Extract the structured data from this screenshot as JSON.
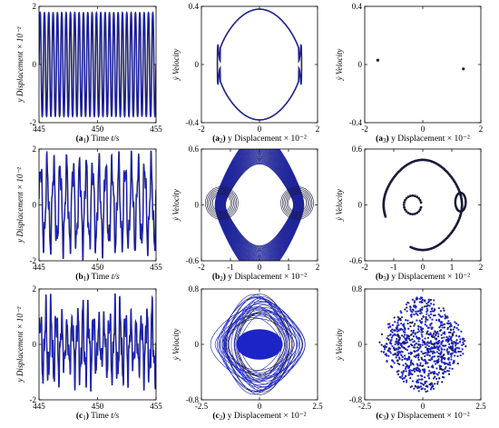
{
  "figure": {
    "colors": {
      "trace": "#1c24c8",
      "edge": "#1a1a3a",
      "axis": "#000000"
    }
  },
  "chart_data": [
    {
      "id": "a1",
      "type": "line",
      "title": "",
      "caption": {
        "letter": "a",
        "sub": "1",
        "text": " Time ",
        "var": "t/s"
      },
      "ylabel": "y Displacement × 10⁻²",
      "xlim": [
        445,
        455
      ],
      "ylim": [
        -2,
        2
      ],
      "xticks": [
        "445",
        "450",
        "455"
      ],
      "yticks": [
        "-2",
        "0",
        "2"
      ],
      "series": [
        {
          "kind": "periodic",
          "x_start": 445,
          "x_end": 455,
          "cycles": 27,
          "amplitude": 1.9
        }
      ]
    },
    {
      "id": "a2",
      "type": "line",
      "title": "",
      "caption": {
        "letter": "a",
        "sub": "2",
        "text": " y Displacement × 10⁻²",
        "var": ""
      },
      "ylabel": "ẏ Velocity",
      "xlim": [
        -2,
        2
      ],
      "ylim": [
        -0.4,
        0.4
      ],
      "xticks": [
        "-2",
        "0",
        "2"
      ],
      "yticks": [
        "-0.4",
        "0",
        "0.4"
      ],
      "series": [
        {
          "kind": "orbit",
          "x_amp": 1.45,
          "y_amp": 0.34,
          "notch": 0.03
        }
      ]
    },
    {
      "id": "a3",
      "type": "scatter",
      "title": "",
      "caption": {
        "letter": "a",
        "sub": "3",
        "text": " y Displacement × 10⁻²",
        "var": ""
      },
      "ylabel": "ẏ Velocity",
      "xlim": [
        -2,
        2
      ],
      "ylim": [
        -0.4,
        0.4
      ],
      "xticks": [
        "-2",
        "0",
        "2"
      ],
      "yticks": [
        "-0.4",
        "0",
        "0.4"
      ],
      "series": [
        {
          "kind": "points",
          "points": [
            [
              -1.55,
              0.03
            ],
            [
              1.4,
              -0.03
            ]
          ]
        }
      ]
    },
    {
      "id": "b1",
      "type": "line",
      "title": "",
      "caption": {
        "letter": "b",
        "sub": "1",
        "text": " Time ",
        "var": "t/s"
      },
      "ylabel": "y Displacement × 10⁻²",
      "xlim": [
        445,
        455
      ],
      "ylim": [
        -2,
        2
      ],
      "xticks": [
        "445",
        "450",
        "455"
      ],
      "yticks": [
        "-2",
        "0",
        "2"
      ],
      "series": [
        {
          "kind": "quasi",
          "x_start": 445,
          "x_end": 455,
          "cycles": 18,
          "amplitude": 1.75
        }
      ]
    },
    {
      "id": "b2",
      "type": "line",
      "title": "",
      "caption": {
        "letter": "b",
        "sub": "2",
        "text": " y Displacement × 10⁻²",
        "var": ""
      },
      "ylabel": "ẏ Velocity",
      "xlim": [
        -2,
        2
      ],
      "ylim": [
        -0.6,
        0.6
      ],
      "xticks": [
        "-2",
        "-1",
        "0",
        "1",
        "2"
      ],
      "yticks": [
        "-0.6",
        "0",
        "0.6"
      ],
      "series": [
        {
          "kind": "torus",
          "x_amp": 1.35,
          "y_amp": 0.44,
          "width": 0.33
        }
      ]
    },
    {
      "id": "b3",
      "type": "scatter",
      "title": "",
      "caption": {
        "letter": "b",
        "sub": "3",
        "text": " y Displacement × 10⁻²",
        "var": ""
      },
      "ylabel": "ẏ Velocity",
      "xlim": [
        -2,
        2
      ],
      "ylim": [
        -0.6,
        0.6
      ],
      "xticks": [
        "-2",
        "-1",
        "0",
        "1",
        "2"
      ],
      "yticks": [
        "-0.6",
        "0",
        "0.6"
      ],
      "series": [
        {
          "kind": "poincare_curve",
          "x_amp": 1.35,
          "y_amp": 0.44
        }
      ]
    },
    {
      "id": "c1",
      "type": "line",
      "title": "",
      "caption": {
        "letter": "c",
        "sub": "1",
        "text": " Time ",
        "var": "t/s"
      },
      "ylabel": "y Displacement × 10⁻²",
      "xlim": [
        445,
        455
      ],
      "ylim": [
        -2,
        2
      ],
      "xticks": [
        "445",
        "450",
        "455"
      ],
      "yticks": [
        "-2",
        "0",
        "2"
      ],
      "series": [
        {
          "kind": "chaotic",
          "x_start": 445,
          "x_end": 455,
          "cycles": 22,
          "amplitude": 1.4
        }
      ]
    },
    {
      "id": "c2",
      "type": "line",
      "title": "",
      "caption": {
        "letter": "c",
        "sub": "2",
        "text": " y Displacement × 10⁻²",
        "var": ""
      },
      "ylabel": "ẏ Velocity",
      "xlim": [
        -2.5,
        2.5
      ],
      "ylim": [
        -0.8,
        0.8
      ],
      "xticks": [
        "-2.5",
        "0",
        "2.5"
      ],
      "yticks": [
        "-0.8",
        "0",
        "0.8"
      ],
      "series": [
        {
          "kind": "chaos_orbit",
          "x_amp": 2.0,
          "y_amp": 0.62
        }
      ]
    },
    {
      "id": "c3",
      "type": "scatter",
      "title": "",
      "caption": {
        "letter": "c",
        "sub": "3",
        "text": " y Displacement × 10⁻²",
        "var": ""
      },
      "ylabel": "ẏ Velocity",
      "xlim": [
        -2.5,
        2.5
      ],
      "ylim": [
        -0.8,
        0.8
      ],
      "xticks": [
        "-2.5",
        "0",
        "2.5"
      ],
      "yticks": [
        "-0.8",
        "0",
        "0.8"
      ],
      "series": [
        {
          "kind": "chaos_points",
          "x_amp": 1.75,
          "y_amp": 0.55
        }
      ]
    }
  ]
}
